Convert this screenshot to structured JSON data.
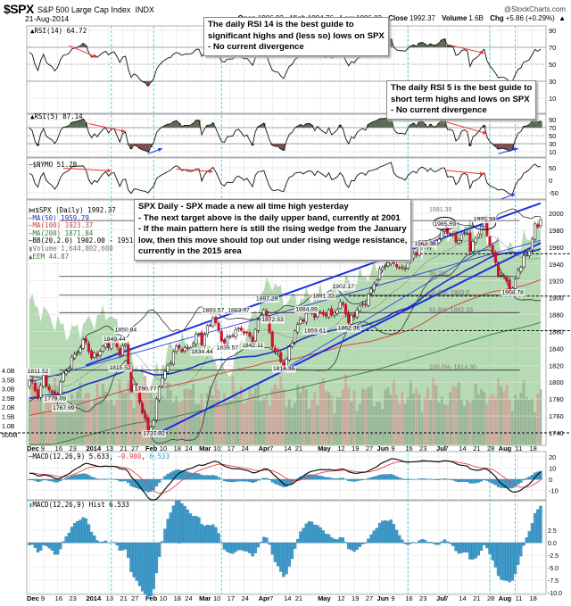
{
  "header": {
    "symbol": "$SPX",
    "name": "S&P 500 Large Cap Index",
    "exchange": "INDX",
    "brand": "@StockCharts.com",
    "date": "21-Aug-2014",
    "open_label": "Open",
    "open": "1986.82",
    "high_label": "High",
    "high": "1994.76",
    "low_label": "Low",
    "low": "1986.82",
    "close_label": "Close",
    "close": "1992.37",
    "volume_label": "Volume",
    "volume": "1.6B",
    "chg_label": "Chg",
    "chg": "+5.86 (+0.29%)"
  },
  "annotations": {
    "rsi14_note": [
      "The daily RSI 14 is the best guide to",
      "significant highs and (less so) lows on SPX",
      "- No current  divergence"
    ],
    "rsi5_note": [
      "The daily RSI 5 is the best guide to",
      "short term highs and lows on SPX",
      "- No current divergence"
    ],
    "price_note": [
      "SPX Daily - SPX made a new all time high yesterday",
      "- The next target above is the daily upper band, currently at 2001",
      "- If the main pattern here is still the rising wedge from the January",
      "low, then this move should top out under rising wedge resistance,",
      "currently in the 2015 area"
    ]
  },
  "colors": {
    "up_candle": "#ffffff",
    "down_candle": "#d0112b",
    "ma50": "#1f2fbf",
    "ma100": "#d83a3a",
    "ma200": "#3a7a3a",
    "eem_area": "#a9d3a6",
    "trendline": "#1a2fe0",
    "divergence_arrow_bear": "#f03030",
    "divergence_arrow_bull": "#2040e0",
    "event_line": "#22d3e0",
    "macd_hist": "#3d9ccc",
    "signal": "#f04040"
  },
  "chart_data": {
    "type": "candlestick",
    "x_ticks": [
      {
        "date": "2013-12-02",
        "label": "Dec",
        "bold": true
      },
      {
        "date": "2013-12-09",
        "label": "9"
      },
      {
        "date": "2013-12-16",
        "label": "16"
      },
      {
        "date": "2013-12-23",
        "label": "23"
      },
      {
        "date": "2014-01-02",
        "label": "2014",
        "bold": true
      },
      {
        "date": "2014-01-13",
        "label": "13"
      },
      {
        "date": "2014-01-21",
        "label": "21"
      },
      {
        "date": "2014-01-27",
        "label": "27"
      },
      {
        "date": "2014-02-03",
        "label": "Feb",
        "bold": true
      },
      {
        "date": "2014-02-10",
        "label": "10"
      },
      {
        "date": "2014-02-18",
        "label": "18"
      },
      {
        "date": "2014-02-24",
        "label": "24"
      },
      {
        "date": "2014-03-03",
        "label": "Mar",
        "bold": true
      },
      {
        "date": "2014-03-10",
        "label": "10"
      },
      {
        "date": "2014-03-17",
        "label": "17"
      },
      {
        "date": "2014-03-24",
        "label": "24"
      },
      {
        "date": "2014-04-01",
        "label": "Apr",
        "bold": true
      },
      {
        "date": "2014-04-07",
        "label": "7"
      },
      {
        "date": "2014-04-14",
        "label": "14"
      },
      {
        "date": "2014-04-21",
        "label": "21"
      },
      {
        "date": "2014-05-01",
        "label": "May",
        "bold": true
      },
      {
        "date": "2014-05-12",
        "label": "12"
      },
      {
        "date": "2014-05-19",
        "label": "19"
      },
      {
        "date": "2014-05-27",
        "label": "27"
      },
      {
        "date": "2014-06-02",
        "label": "Jun",
        "bold": true
      },
      {
        "date": "2014-06-09",
        "label": "9"
      },
      {
        "date": "2014-06-16",
        "label": "16"
      },
      {
        "date": "2014-06-23",
        "label": "23"
      },
      {
        "date": "2014-07-01",
        "label": "Jul",
        "bold": true
      },
      {
        "date": "2014-07-07",
        "label": "7"
      },
      {
        "date": "2014-07-14",
        "label": "14"
      },
      {
        "date": "2014-07-21",
        "label": "21"
      },
      {
        "date": "2014-07-28",
        "label": "28"
      },
      {
        "date": "2014-08-01",
        "label": "Aug",
        "bold": true
      },
      {
        "date": "2014-08-11",
        "label": "11"
      },
      {
        "date": "2014-08-18",
        "label": "18"
      }
    ],
    "event_lines": [
      "2014-01-14",
      "2014-02-05",
      "2014-03-12",
      "2014-06-16",
      "2014-07-28",
      "2014-08-08"
    ],
    "price": {
      "legend": {
        "title": "$SPX (Daily) 1992.37",
        "ma50": "MA(50) 1959.79",
        "ma100": "MA(100) 1923.37",
        "ma200": "MA(200) 1871.84",
        "bb": "BB(20,2.0) 1902.00 - 1951.68 - 2001.36",
        "volume": "Volume 1,644,802,600",
        "eem": "EEM 44.87"
      },
      "y_ticks": [
        2000,
        1980,
        1960,
        1940,
        1920,
        1900,
        1880,
        1860,
        1840,
        1820,
        1800,
        1780,
        1760,
        1740
      ],
      "ylim": [
        1730,
        2018
      ],
      "volume_ticks": [
        "4.0B",
        "3.5B",
        "3.0B",
        "2.5B",
        "2.0B",
        "1.5B",
        "1.0B",
        "500M"
      ],
      "close_anchors": [
        [
          "2013-12-02",
          1800
        ],
        [
          "2013-12-05",
          1785
        ],
        [
          "2013-12-09",
          1808
        ],
        [
          "2013-12-13",
          1775
        ],
        [
          "2013-12-18",
          1810
        ],
        [
          "2013-12-23",
          1828
        ],
        [
          "2013-12-31",
          1848
        ],
        [
          "2014-01-03",
          1831
        ],
        [
          "2014-01-08",
          1837
        ],
        [
          "2014-01-15",
          1848
        ],
        [
          "2014-01-17",
          1838
        ],
        [
          "2014-01-22",
          1844
        ],
        [
          "2014-01-24",
          1790
        ],
        [
          "2014-01-28",
          1792
        ],
        [
          "2014-02-03",
          1742
        ],
        [
          "2014-02-05",
          1752
        ],
        [
          "2014-02-07",
          1797
        ],
        [
          "2014-02-13",
          1829
        ],
        [
          "2014-02-18",
          1840
        ],
        [
          "2014-02-21",
          1836
        ],
        [
          "2014-02-28",
          1859
        ],
        [
          "2014-03-03",
          1845
        ],
        [
          "2014-03-07",
          1878
        ],
        [
          "2014-03-13",
          1846
        ],
        [
          "2014-03-21",
          1866
        ],
        [
          "2014-03-27",
          1849
        ],
        [
          "2014-04-02",
          1890
        ],
        [
          "2014-04-07",
          1845
        ],
        [
          "2014-04-11",
          1815
        ],
        [
          "2014-04-17",
          1864
        ],
        [
          "2014-04-24",
          1878
        ],
        [
          "2014-04-30",
          1884
        ],
        [
          "2014-05-07",
          1878
        ],
        [
          "2014-05-13",
          1897
        ],
        [
          "2014-05-15",
          1870
        ],
        [
          "2014-05-22",
          1892
        ],
        [
          "2014-05-30",
          1923
        ],
        [
          "2014-06-06",
          1949
        ],
        [
          "2014-06-12",
          1930
        ],
        [
          "2014-06-20",
          1962
        ],
        [
          "2014-06-27",
          1960
        ],
        [
          "2014-07-03",
          1985
        ],
        [
          "2014-07-10",
          1965
        ],
        [
          "2014-07-16",
          1981
        ],
        [
          "2014-07-17",
          1958
        ],
        [
          "2014-07-24",
          1988
        ],
        [
          "2014-07-31",
          1930
        ],
        [
          "2014-08-01",
          1925
        ],
        [
          "2014-08-07",
          1909
        ],
        [
          "2014-08-11",
          1936
        ],
        [
          "2014-08-15",
          1955
        ],
        [
          "2014-08-19",
          1982
        ],
        [
          "2014-08-21",
          1992.37
        ]
      ],
      "eem_anchors": [
        [
          "2013-12-02",
          41.5
        ],
        [
          "2013-12-20",
          40
        ],
        [
          "2014-01-02",
          40.5
        ],
        [
          "2014-01-13",
          41
        ],
        [
          "2014-02-03",
          37.5
        ],
        [
          "2014-02-14",
          39.5
        ],
        [
          "2014-03-03",
          39.6
        ],
        [
          "2014-03-14",
          38
        ],
        [
          "2014-04-04",
          42.5
        ],
        [
          "2014-04-14",
          41.5
        ],
        [
          "2014-05-05",
          41.8
        ],
        [
          "2014-06-02",
          43
        ],
        [
          "2014-06-13",
          43.5
        ],
        [
          "2014-07-03",
          44.5
        ],
        [
          "2014-07-15",
          45
        ],
        [
          "2014-07-31",
          44
        ],
        [
          "2014-08-07",
          43.8
        ],
        [
          "2014-08-21",
          44.87
        ]
      ],
      "point_labels": [
        [
          "2013-12-13",
          1779.09,
          "1779.09"
        ],
        [
          "2013-12-18",
          1767.99,
          "1767.99"
        ],
        [
          "2013-12-05",
          1811.52,
          "1811.52"
        ],
        [
          "2014-01-15",
          1849.44,
          "1849.44"
        ],
        [
          "2014-01-22",
          1850.84,
          "1850.84"
        ],
        [
          "2014-01-17",
          1815.52,
          "1815.52"
        ],
        [
          "2014-01-31",
          1790.77,
          "1790.77"
        ],
        [
          "2014-02-05",
          1737.92,
          "1737.92"
        ],
        [
          "2014-03-07",
          1883.57,
          "1883.57"
        ],
        [
          "2014-03-20",
          1883.97,
          "1883.97"
        ],
        [
          "2014-04-03",
          1897.28,
          "1897.28"
        ],
        [
          "2014-04-24",
          1884.89,
          "1884.89"
        ],
        [
          "2014-05-02",
          1891.33,
          "1891.33"
        ],
        [
          "2014-05-13",
          1902.17,
          "1902.17"
        ],
        [
          "2014-04-07",
          1872.53,
          "1872.53"
        ],
        [
          "2014-04-29",
          1859.61,
          "1859.61"
        ],
        [
          "2014-05-15",
          1862.36,
          "1862.36"
        ],
        [
          "2014-03-03",
          1834.44,
          "1834.44"
        ],
        [
          "2014-03-14",
          1839.57,
          "1839.57"
        ],
        [
          "2014-03-27",
          1842.11,
          "1842.11"
        ],
        [
          "2014-04-11",
          1814.36,
          "1814.36"
        ],
        [
          "2014-07-03",
          1985.59,
          "1985.59"
        ],
        [
          "2014-07-24",
          1991.39,
          "1991.39"
        ],
        [
          "2014-06-24",
          1962.36,
          "1962.36"
        ],
        [
          "2014-08-07",
          1904.78,
          "1904.78"
        ]
      ],
      "fib_levels": [
        {
          "value": 1991.39,
          "label": "1991.39"
        },
        {
          "value": 1925.2,
          "label": "38.2%"
        },
        {
          "value": 1903.0,
          "label": "50.0%: 1903.0"
        },
        {
          "value": 1882.33,
          "label": "61.8%: 1882.33"
        },
        {
          "value": 1814.3,
          "label": "100.0%: 1814.30"
        }
      ],
      "dashed_levels": [
        1952,
        1902,
        1861,
        1740
      ],
      "trendlines": [
        {
          "from": [
            "2013-12-31",
            1820
          ],
          "to": [
            "2014-08-21",
            2012
          ]
        },
        {
          "from": [
            "2014-02-05",
            1737
          ],
          "to": [
            "2014-08-21",
            1965
          ]
        },
        {
          "from": [
            "2013-12-02",
            1800
          ],
          "to": [
            "2014-08-21",
            1968
          ],
          "thin": true
        },
        {
          "from": [
            "2014-04-11",
            1815
          ],
          "to": [
            "2014-07-31",
            1968
          ],
          "thin": true
        }
      ],
      "ellipses": [
        "2014-07-03",
        "2014-07-24"
      ]
    },
    "rsi14": {
      "legend": "RSI(14) 64.72",
      "y_ticks": [
        90,
        70,
        50,
        30,
        10
      ],
      "ylim": [
        0,
        100
      ]
    },
    "rsi5": {
      "legend": "RSI(5) 87.14",
      "y_ticks": [
        90,
        70,
        50,
        30,
        10
      ],
      "ylim": [
        0,
        100
      ]
    },
    "nymo": {
      "legend": "$NYMO 51.28",
      "y_ticks": [
        50,
        0,
        -50
      ],
      "ylim": [
        -75,
        75
      ]
    },
    "macd": {
      "legend_macd": "MACD(12,26,9) 5.633",
      "legend_signal": "-0.900",
      "legend_hist": "6.533",
      "y_ticks": [
        20,
        10,
        0,
        -10
      ]
    },
    "macd_hist": {
      "legend": "MACD(12,26,9) Hist 6.533",
      "y_ticks": [
        "2.5",
        "0.0",
        "-2.5",
        "-5.0",
        "-7.5",
        "-10.0"
      ]
    },
    "divergence_arrows": [
      {
        "panel": "rsi14",
        "from": [
          "2013-12-20",
          72
        ],
        "to": [
          "2014-01-07",
          58
        ],
        "kind": "bear"
      },
      {
        "panel": "rsi14",
        "from": [
          "2014-07-03",
          74
        ],
        "to": [
          "2014-07-24",
          63
        ],
        "kind": "bear"
      },
      {
        "panel": "rsi5",
        "from": [
          "2014-01-02",
          80
        ],
        "to": [
          "2014-01-22",
          60
        ],
        "kind": "bear"
      },
      {
        "panel": "rsi5",
        "from": [
          "2014-02-03",
          5
        ],
        "to": [
          "2014-02-10",
          18
        ],
        "kind": "bull"
      },
      {
        "panel": "rsi5",
        "from": [
          "2014-07-03",
          85
        ],
        "to": [
          "2014-07-25",
          55
        ],
        "kind": "bear"
      },
      {
        "panel": "rsi5",
        "from": [
          "2014-07-31",
          5
        ],
        "to": [
          "2014-08-11",
          18
        ],
        "kind": "bull"
      },
      {
        "panel": "nymo",
        "from": [
          "2013-12-18",
          48
        ],
        "to": [
          "2014-01-14",
          38
        ],
        "kind": "bear"
      },
      {
        "panel": "nymo",
        "from": [
          "2014-02-18",
          45
        ],
        "to": [
          "2014-03-07",
          35
        ],
        "kind": "bear"
      },
      {
        "panel": "nymo",
        "from": [
          "2014-07-03",
          40
        ],
        "to": [
          "2014-07-24",
          25
        ],
        "kind": "bear"
      },
      {
        "panel": "nymo",
        "from": [
          "2014-08-01",
          -75
        ],
        "to": [
          "2014-08-08",
          -55
        ],
        "kind": "bull"
      }
    ]
  }
}
